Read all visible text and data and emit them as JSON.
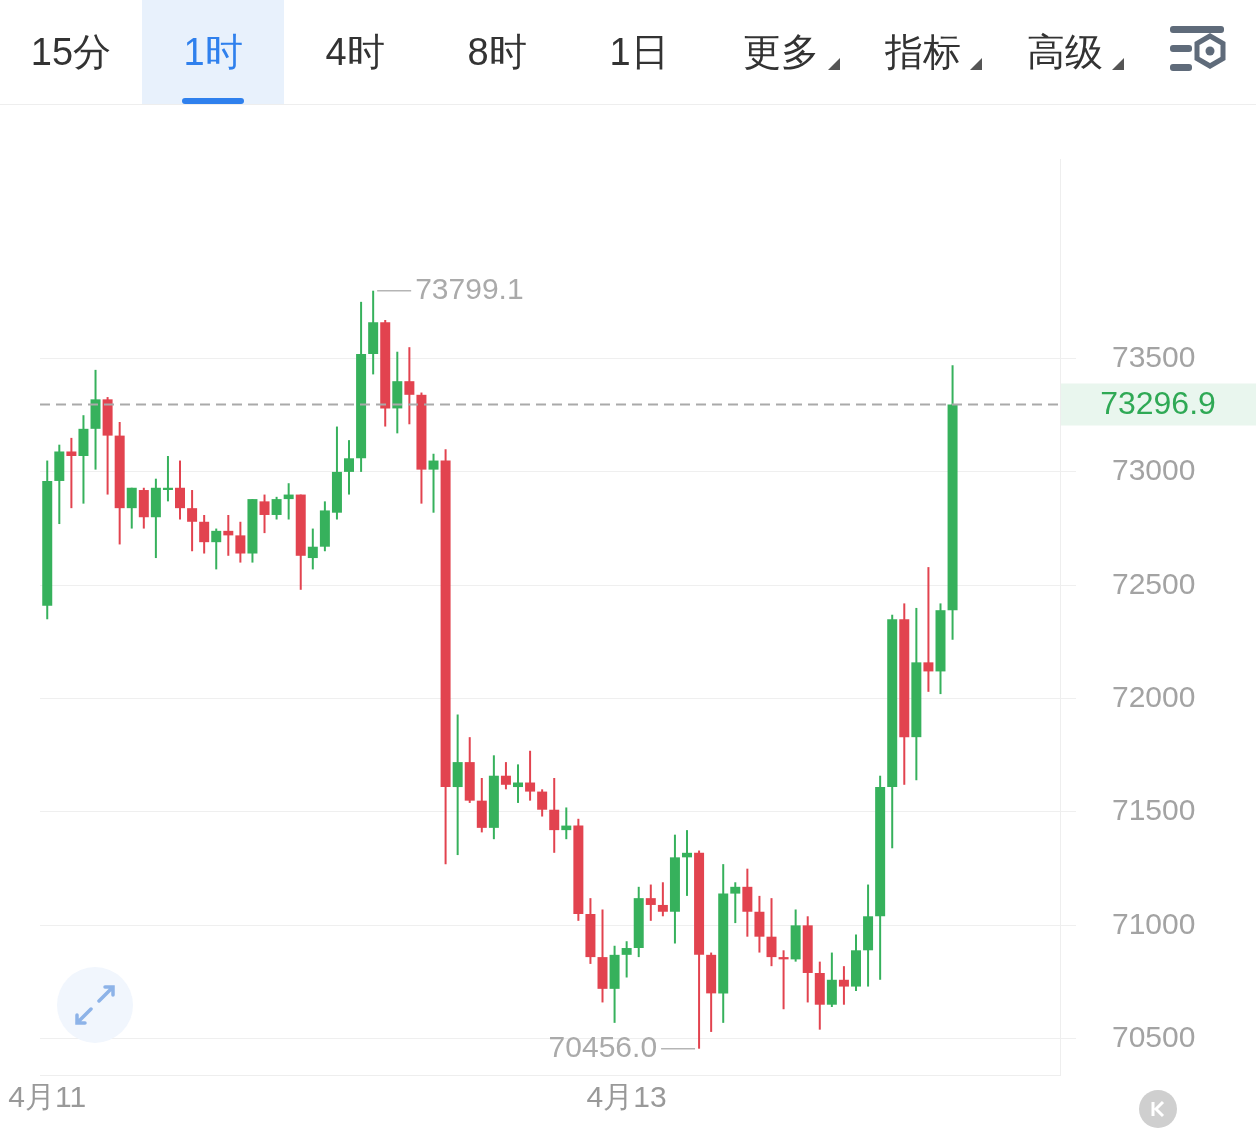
{
  "chart_data": {
    "type": "candlestick",
    "annotations": [
      "15分",
      "1时",
      "4时",
      "8时",
      "1日",
      "更多",
      "指标",
      "高级",
      "73799.1",
      "70456.0"
    ],
    "categories": [
      "4月11",
      null,
      null,
      null,
      null,
      null,
      null,
      null,
      null,
      null,
      null,
      null,
      null,
      null,
      null,
      null,
      null,
      null,
      null,
      null,
      null,
      null,
      null,
      null,
      null,
      null,
      null,
      null,
      null,
      null,
      null,
      null,
      null,
      null,
      null,
      null,
      null,
      null,
      null,
      null,
      null,
      null,
      null,
      null,
      null,
      null,
      null,
      null,
      "4月13",
      null,
      null,
      null,
      null,
      null,
      null,
      null,
      null,
      null,
      null,
      null,
      null,
      null,
      null,
      null,
      null,
      null,
      null,
      null,
      null,
      null,
      null,
      null,
      null,
      null,
      null,
      null
    ],
    "ohlc": [
      [
        72410,
        73050,
        72350,
        72960
      ],
      [
        72960,
        73120,
        72770,
        73090
      ],
      [
        73090,
        73150,
        72840,
        73070
      ],
      [
        73070,
        73250,
        72860,
        73190
      ],
      [
        73190,
        73450,
        73010,
        73320
      ],
      [
        73320,
        73330,
        72900,
        73160
      ],
      [
        73160,
        73220,
        72680,
        72840
      ],
      [
        72840,
        72930,
        72750,
        72930
      ],
      [
        72920,
        72930,
        72750,
        72800
      ],
      [
        72800,
        72970,
        72620,
        72930
      ],
      [
        72920,
        73070,
        72870,
        72930
      ],
      [
        72930,
        73050,
        72790,
        72840
      ],
      [
        72840,
        72920,
        72650,
        72780
      ],
      [
        72780,
        72810,
        72640,
        72690
      ],
      [
        72690,
        72750,
        72570,
        72740
      ],
      [
        72740,
        72810,
        72630,
        72720
      ],
      [
        72720,
        72780,
        72600,
        72640
      ],
      [
        72640,
        72880,
        72600,
        72880
      ],
      [
        72870,
        72900,
        72730,
        72810
      ],
      [
        72810,
        72890,
        72790,
        72880
      ],
      [
        72880,
        72950,
        72790,
        72900
      ],
      [
        72900,
        72900,
        72480,
        72630
      ],
      [
        72620,
        72750,
        72570,
        72670
      ],
      [
        72670,
        72870,
        72650,
        72830
      ],
      [
        72820,
        73200,
        72790,
        73000
      ],
      [
        73000,
        73140,
        72900,
        73060
      ],
      [
        73060,
        73750,
        73000,
        73520
      ],
      [
        73520,
        73799.1,
        73430,
        73660
      ],
      [
        73660,
        73670,
        73200,
        73280
      ],
      [
        73280,
        73530,
        73170,
        73400
      ],
      [
        73400,
        73550,
        73210,
        73340
      ],
      [
        73340,
        73350,
        72860,
        73010
      ],
      [
        73010,
        73080,
        72820,
        73050
      ],
      [
        73050,
        73100,
        71270,
        71610
      ],
      [
        71610,
        71930,
        71310,
        71720
      ],
      [
        71720,
        71830,
        71540,
        71550
      ],
      [
        71550,
        71650,
        71410,
        71430
      ],
      [
        71430,
        71750,
        71380,
        71660
      ],
      [
        71660,
        71720,
        71600,
        71620
      ],
      [
        71610,
        71710,
        71540,
        71630
      ],
      [
        71630,
        71770,
        71550,
        71590
      ],
      [
        71590,
        71600,
        71480,
        71510
      ],
      [
        71510,
        71650,
        71320,
        71420
      ],
      [
        71420,
        71520,
        71380,
        71440
      ],
      [
        71440,
        71470,
        71020,
        71050
      ],
      [
        71050,
        71120,
        70830,
        70860
      ],
      [
        70860,
        71070,
        70660,
        70720
      ],
      [
        70720,
        70910,
        70570,
        70870
      ],
      [
        70870,
        70930,
        70770,
        70900
      ],
      [
        70900,
        71170,
        70860,
        71120
      ],
      [
        71120,
        71180,
        71020,
        71090
      ],
      [
        71090,
        71190,
        71040,
        71060
      ],
      [
        71060,
        71400,
        70920,
        71300
      ],
      [
        71300,
        71420,
        71130,
        71320
      ],
      [
        71320,
        71330,
        70456.0,
        70870
      ],
      [
        70870,
        70880,
        70530,
        70700
      ],
      [
        70700,
        71270,
        70570,
        71140
      ],
      [
        71140,
        71190,
        71010,
        71170
      ],
      [
        71170,
        71250,
        70950,
        71060
      ],
      [
        71060,
        71130,
        70880,
        70950
      ],
      [
        70950,
        71120,
        70820,
        70860
      ],
      [
        70860,
        70890,
        70630,
        70850
      ],
      [
        70850,
        71070,
        70840,
        71000
      ],
      [
        71000,
        71040,
        70660,
        70790
      ],
      [
        70790,
        70840,
        70540,
        70650
      ],
      [
        70650,
        70880,
        70640,
        70760
      ],
      [
        70760,
        70820,
        70650,
        70730
      ],
      [
        70730,
        70960,
        70710,
        70890
      ],
      [
        70890,
        71180,
        70730,
        71040
      ],
      [
        71040,
        71660,
        70760,
        71610
      ],
      [
        71610,
        72370,
        71340,
        72350
      ],
      [
        72350,
        72420,
        71620,
        71830
      ],
      [
        71830,
        72400,
        71640,
        72160
      ],
      [
        72160,
        72580,
        72030,
        72120
      ],
      [
        72120,
        72420,
        72020,
        72390
      ],
      [
        72390,
        73470,
        72260,
        73296.9
      ]
    ],
    "colors": [
      "#36b15c",
      "#36b15c",
      "#e2434f",
      "#36b15c",
      "#36b15c",
      "#e2434f",
      "#e2434f",
      "#36b15c",
      "#e2434f",
      "#36b15c",
      "#36b15c",
      "#e2434f",
      "#e2434f",
      "#e2434f",
      "#36b15c",
      "#e2434f",
      "#e2434f",
      "#36b15c",
      "#e2434f",
      "#36b15c",
      "#36b15c",
      "#e2434f",
      "#36b15c",
      "#36b15c",
      "#36b15c",
      "#36b15c",
      "#36b15c",
      "#36b15c",
      "#e2434f",
      "#36b15c",
      "#e2434f",
      "#e2434f",
      "#36b15c",
      "#e2434f",
      "#36b15c",
      "#e2434f",
      "#e2434f",
      "#36b15c",
      "#e2434f",
      "#36b15c",
      "#e2434f",
      "#e2434f",
      "#e2434f",
      "#36b15c",
      "#e2434f",
      "#e2434f",
      "#e2434f",
      "#36b15c",
      "#36b15c",
      "#36b15c",
      "#e2434f",
      "#e2434f",
      "#36b15c",
      "#36b15c",
      "#e2434f",
      "#e2434f",
      "#36b15c",
      "#36b15c",
      "#e2434f",
      "#e2434f",
      "#e2434f",
      "#e2434f",
      "#36b15c",
      "#e2434f",
      "#e2434f",
      "#36b15c",
      "#e2434f",
      "#36b15c",
      "#36b15c",
      "#36b15c",
      "#36b15c",
      "#e2434f",
      "#36b15c",
      "#e2434f",
      "#36b15c",
      "#36b15c"
    ],
    "ylim": [
      70340,
      74380
    ],
    "yticks": [
      70500,
      71000,
      71500,
      72000,
      72500,
      73000,
      73500
    ],
    "grid": "y",
    "ref_lines": [
      {
        "axis": "y",
        "value": 73296.9,
        "label": "73296.9",
        "color": "#aaaaaa",
        "line_style": "dashed"
      }
    ]
  }
}
